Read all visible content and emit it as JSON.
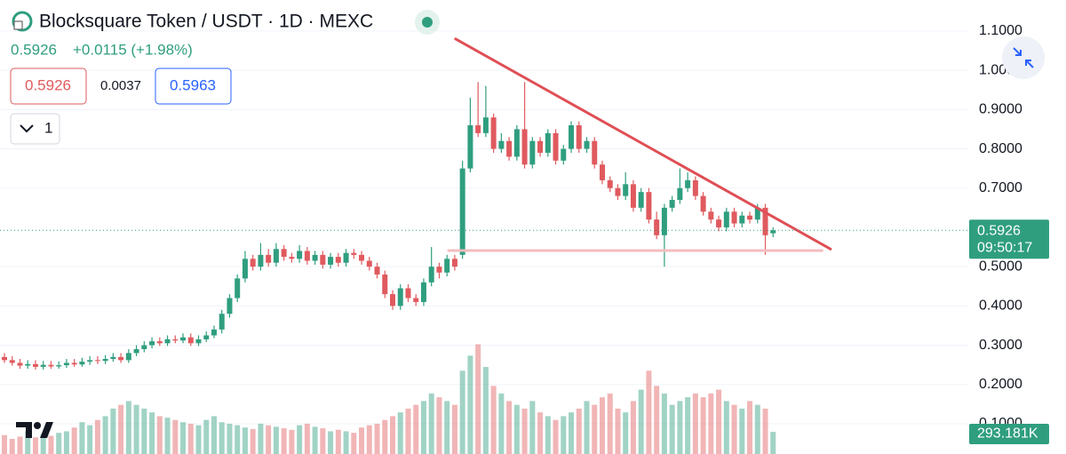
{
  "header": {
    "title": "Blocksquare Token / USDT · 1D · MEXC",
    "price": "0.5926",
    "change": "+0.0115 (+1.98%)",
    "sell": "0.5926",
    "spread": "0.0037",
    "buy": "0.5963",
    "interval_count": "1"
  },
  "chart_data": {
    "type": "candlestick",
    "open": [
      0.27,
      0.262,
      0.255,
      0.248,
      0.252,
      0.245,
      0.25,
      0.246,
      0.249,
      0.255,
      0.251,
      0.258,
      0.262,
      0.26,
      0.265,
      0.27,
      0.262,
      0.28,
      0.29,
      0.3,
      0.31,
      0.305,
      0.315,
      0.312,
      0.32,
      0.305,
      0.315,
      0.325,
      0.34,
      0.38,
      0.42,
      0.47,
      0.52,
      0.5,
      0.53,
      0.51,
      0.545,
      0.525,
      0.52,
      0.54,
      0.515,
      0.53,
      0.505,
      0.525,
      0.51,
      0.535,
      0.53,
      0.515,
      0.5,
      0.48,
      0.43,
      0.4,
      0.445,
      0.42,
      0.41,
      0.46,
      0.5,
      0.485,
      0.52,
      0.53,
      0.75,
      0.86,
      0.84,
      0.88,
      0.8,
      0.82,
      0.78,
      0.85,
      0.76,
      0.82,
      0.79,
      0.84,
      0.77,
      0.8,
      0.86,
      0.8,
      0.82,
      0.76,
      0.72,
      0.7,
      0.68,
      0.71,
      0.65,
      0.69,
      0.62,
      0.58,
      0.65,
      0.67,
      0.7,
      0.72,
      0.68,
      0.64,
      0.62,
      0.6,
      0.64,
      0.61,
      0.63,
      0.62,
      0.65,
      0.585
    ],
    "high": [
      0.28,
      0.272,
      0.265,
      0.262,
      0.262,
      0.26,
      0.26,
      0.259,
      0.265,
      0.265,
      0.268,
      0.272,
      0.272,
      0.275,
      0.28,
      0.28,
      0.29,
      0.3,
      0.31,
      0.32,
      0.32,
      0.325,
      0.325,
      0.33,
      0.33,
      0.325,
      0.335,
      0.35,
      0.39,
      0.43,
      0.48,
      0.54,
      0.53,
      0.56,
      0.545,
      0.56,
      0.555,
      0.535,
      0.555,
      0.55,
      0.54,
      0.54,
      0.535,
      0.535,
      0.545,
      0.545,
      0.54,
      0.525,
      0.51,
      0.49,
      0.44,
      0.455,
      0.455,
      0.43,
      0.47,
      0.55,
      0.51,
      0.53,
      0.53,
      0.77,
      0.93,
      0.97,
      0.96,
      0.89,
      0.84,
      0.83,
      0.86,
      0.97,
      0.83,
      0.83,
      0.85,
      0.85,
      0.81,
      0.87,
      0.87,
      0.83,
      0.83,
      0.77,
      0.73,
      0.71,
      0.74,
      0.72,
      0.7,
      0.7,
      0.64,
      0.66,
      0.68,
      0.75,
      0.74,
      0.73,
      0.69,
      0.65,
      0.63,
      0.65,
      0.65,
      0.64,
      0.64,
      0.66,
      0.66,
      0.6
    ],
    "low": [
      0.255,
      0.248,
      0.24,
      0.24,
      0.238,
      0.238,
      0.24,
      0.24,
      0.242,
      0.245,
      0.245,
      0.25,
      0.252,
      0.252,
      0.258,
      0.255,
      0.255,
      0.272,
      0.282,
      0.292,
      0.298,
      0.298,
      0.305,
      0.305,
      0.298,
      0.298,
      0.308,
      0.318,
      0.33,
      0.37,
      0.41,
      0.46,
      0.49,
      0.49,
      0.5,
      0.5,
      0.515,
      0.51,
      0.51,
      0.505,
      0.505,
      0.495,
      0.495,
      0.5,
      0.5,
      0.52,
      0.505,
      0.49,
      0.47,
      0.42,
      0.39,
      0.39,
      0.41,
      0.4,
      0.4,
      0.45,
      0.47,
      0.475,
      0.49,
      0.52,
      0.74,
      0.83,
      0.83,
      0.79,
      0.79,
      0.77,
      0.77,
      0.75,
      0.75,
      0.78,
      0.78,
      0.76,
      0.76,
      0.79,
      0.79,
      0.79,
      0.75,
      0.71,
      0.69,
      0.67,
      0.67,
      0.64,
      0.64,
      0.61,
      0.57,
      0.5,
      0.64,
      0.66,
      0.69,
      0.67,
      0.63,
      0.61,
      0.59,
      0.59,
      0.6,
      0.6,
      0.61,
      0.61,
      0.53,
      0.575
    ],
    "close": [
      0.262,
      0.255,
      0.248,
      0.252,
      0.245,
      0.25,
      0.246,
      0.249,
      0.255,
      0.251,
      0.258,
      0.262,
      0.26,
      0.265,
      0.27,
      0.262,
      0.28,
      0.29,
      0.3,
      0.31,
      0.305,
      0.315,
      0.312,
      0.32,
      0.305,
      0.315,
      0.325,
      0.34,
      0.38,
      0.42,
      0.47,
      0.52,
      0.5,
      0.53,
      0.51,
      0.545,
      0.525,
      0.52,
      0.54,
      0.515,
      0.53,
      0.505,
      0.525,
      0.51,
      0.535,
      0.53,
      0.515,
      0.5,
      0.48,
      0.43,
      0.4,
      0.445,
      0.42,
      0.41,
      0.46,
      0.5,
      0.485,
      0.52,
      0.5,
      0.75,
      0.86,
      0.84,
      0.88,
      0.8,
      0.82,
      0.78,
      0.85,
      0.76,
      0.82,
      0.79,
      0.84,
      0.77,
      0.8,
      0.86,
      0.8,
      0.82,
      0.76,
      0.72,
      0.7,
      0.68,
      0.71,
      0.65,
      0.69,
      0.62,
      0.58,
      0.65,
      0.67,
      0.7,
      0.72,
      0.68,
      0.64,
      0.62,
      0.6,
      0.64,
      0.61,
      0.63,
      0.62,
      0.65,
      0.58,
      0.5926
    ],
    "volume": [
      250000,
      200000,
      230000,
      300000,
      220000,
      260000,
      240000,
      280000,
      300000,
      350000,
      420000,
      380000,
      450000,
      500000,
      600000,
      650000,
      700000,
      650000,
      600000,
      550000,
      500000,
      480000,
      450000,
      420000,
      400000,
      380000,
      450000,
      500000,
      420000,
      400000,
      380000,
      350000,
      330000,
      400000,
      380000,
      360000,
      340000,
      320000,
      380000,
      400000,
      360000,
      340000,
      300000,
      320000,
      300000,
      280000,
      350000,
      380000,
      400000,
      450000,
      500000,
      550000,
      600000,
      650000,
      700000,
      800000,
      750000,
      700000,
      650000,
      1100000,
      1300000,
      1450000,
      1150000,
      900000,
      800000,
      700000,
      650000,
      600000,
      700000,
      550000,
      500000,
      450000,
      500000,
      550000,
      600000,
      700000,
      650000,
      750000,
      800000,
      600000,
      550000,
      700000,
      850000,
      1100000,
      900000,
      800000,
      650000,
      700000,
      750000,
      800000,
      750000,
      800000,
      850000,
      700000,
      650000,
      600000,
      700000,
      650000,
      600000,
      293181
    ],
    "volume_label": "293.181K",
    "volume_lim": [
      0,
      6000000
    ],
    "ylim": [
      0.023,
      1.179
    ],
    "yticks": [
      {
        "value": 1.1,
        "label": "1.1000"
      },
      {
        "value": 1.0,
        "label": "1.0000"
      },
      {
        "value": 0.9,
        "label": "0.9000"
      },
      {
        "value": 0.8,
        "label": "0.8000"
      },
      {
        "value": 0.7,
        "label": "0.7000"
      },
      {
        "value": 0.5,
        "label": "0.5000"
      },
      {
        "value": 0.4,
        "label": "0.4000"
      },
      {
        "value": 0.3,
        "label": "0.3000"
      },
      {
        "value": 0.2,
        "label": "0.2000"
      },
      {
        "value": 0.1,
        "label": "0.1000"
      }
    ],
    "last_price": 0.5926,
    "countdown": "09:50:17",
    "up_color": "#2f9e7f",
    "down_color": "#e05a5e",
    "grid": true,
    "trendlines": [
      {
        "start": [
          58.1,
          1.08
        ],
        "end": [
          106.4,
          0.545
        ],
        "color": "#df4f55"
      },
      {
        "start": [
          57.2,
          0.541
        ],
        "end": [
          105.3,
          0.541
        ],
        "color": "#f2bcc1"
      }
    ]
  }
}
